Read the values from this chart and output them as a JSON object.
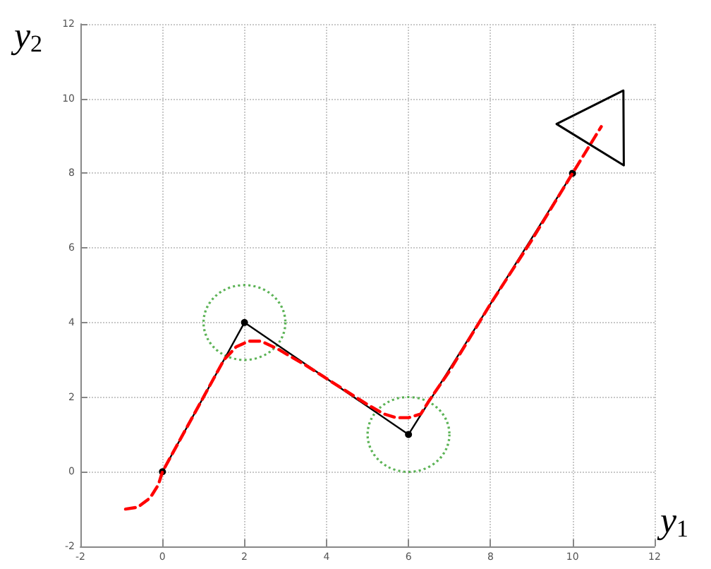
{
  "chart_data": {
    "type": "line",
    "xlabel": "y$_{1}$",
    "ylabel": "y$_{2}$",
    "xlim": [
      -2,
      12
    ],
    "xticks": [
      -2,
      0,
      2,
      4,
      6,
      8,
      10,
      12
    ],
    "ylim": [
      -2,
      12
    ],
    "yticks": [
      -2,
      0,
      2,
      4,
      6,
      8,
      10,
      12
    ],
    "grid": true,
    "series": [
      {
        "color": "#ff0000",
        "line_style": "dashed",
        "marker": "none",
        "x": [
          -0.9,
          -0.6,
          -0.3,
          -0.1,
          0,
          0.5,
          1,
          1.5,
          1.8,
          2.1,
          2.4,
          2.8,
          3.5,
          4,
          4.5,
          5,
          5.4,
          5.7,
          6,
          6.3,
          6.5,
          7,
          8,
          9,
          10,
          10.7
        ],
        "values": [
          -1,
          -0.95,
          -0.7,
          -0.35,
          0,
          1,
          2,
          3,
          3.35,
          3.5,
          3.5,
          3.3,
          2.85,
          2.5,
          2.15,
          1.8,
          1.55,
          1.45,
          1.45,
          1.55,
          1.9,
          2.7,
          4.5,
          6.2,
          8,
          9.25
        ]
      },
      {
        "color": "#000000",
        "line_style": "solid",
        "marker": "circle",
        "x": [
          0,
          2,
          6,
          10
        ],
        "values": [
          0,
          4,
          1,
          8
        ]
      },
      {
        "type": "scatter",
        "color": "#33a02c",
        "line_style": "dotted",
        "marker": "circle",
        "x": [
          2,
          6
        ],
        "values": [
          4,
          1
        ]
      }
    ]
  }
}
